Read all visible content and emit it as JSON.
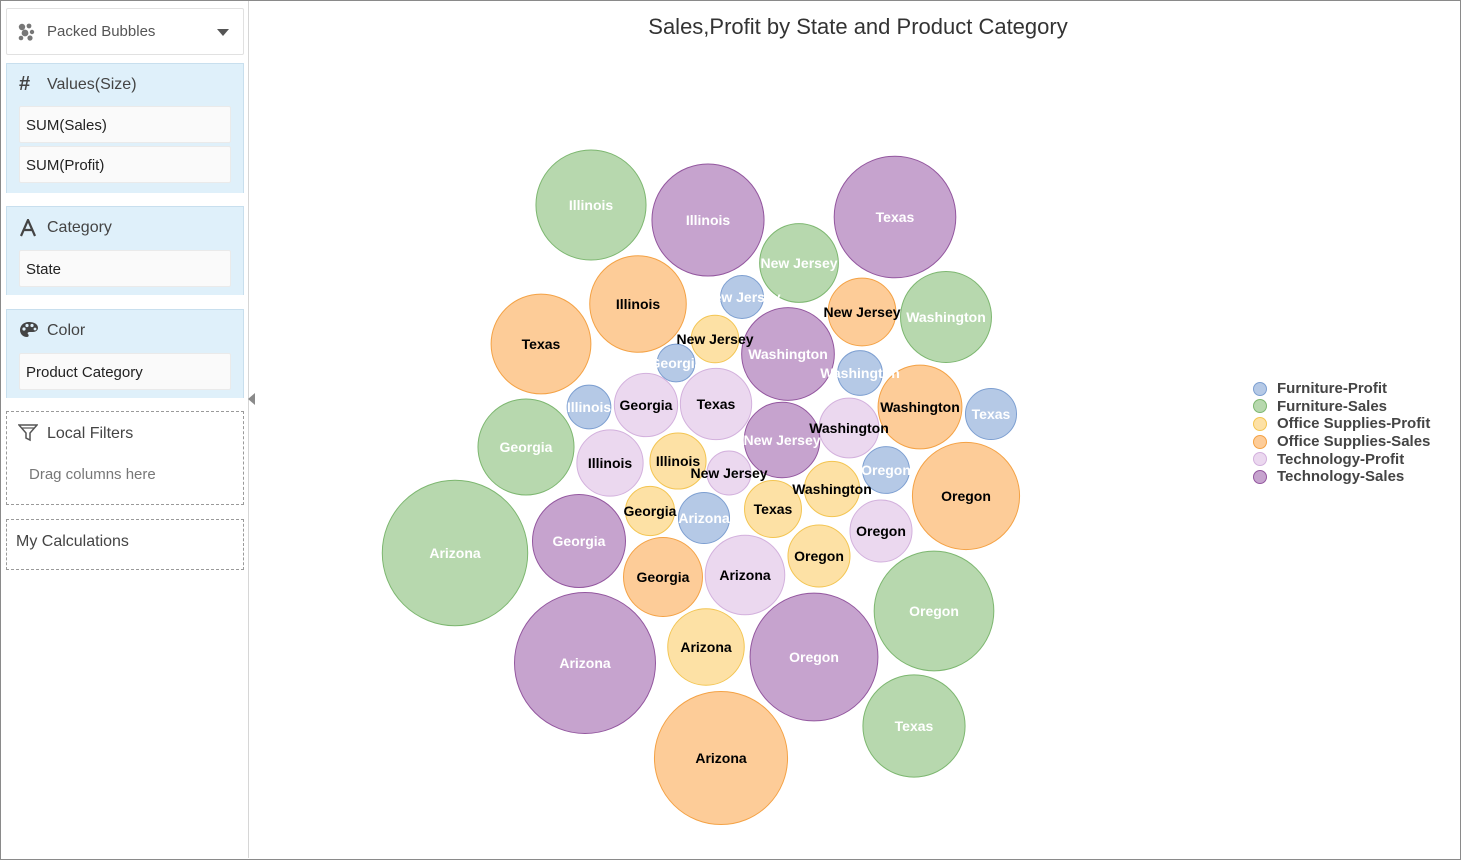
{
  "sidebar": {
    "chart_type": {
      "label": "Packed Bubbles",
      "icon": "packed-bubbles-icon"
    },
    "values": {
      "title": "Values(Size)",
      "icon": "hash-icon",
      "items": [
        "SUM(Sales)",
        "SUM(Profit)"
      ]
    },
    "category": {
      "title": "Category",
      "icon": "text-a-icon",
      "items": [
        "State"
      ]
    },
    "color": {
      "title": "Color",
      "icon": "palette-icon",
      "items": [
        "Product Category"
      ]
    },
    "local_filters": {
      "title": "Local Filters",
      "icon": "filter-icon",
      "placeholder": "Drag columns here"
    },
    "calculations": {
      "title": "My Calculations"
    }
  },
  "chart_data": {
    "type": "bubble",
    "title": "Sales,Profit by State and Product Category",
    "size_measures": [
      "SUM(Sales)",
      "SUM(Profit)"
    ],
    "legend_position": "right",
    "series": [
      {
        "name": "Furniture-Profit",
        "color": "#b5c9e6",
        "stroke": "#7d9fd1",
        "label_color": "#ffffff",
        "points": [
          {
            "label": "Illinois",
            "size": 0.6
          },
          {
            "label": "New Jersey",
            "size": 0.58
          },
          {
            "label": "Georgia",
            "size": 0.45
          },
          {
            "label": "Washington",
            "size": 0.63
          },
          {
            "label": "Texas",
            "size": 0.82
          },
          {
            "label": "Oregon",
            "size": 0.69
          },
          {
            "label": "Arizona",
            "size": 0.82
          }
        ]
      },
      {
        "name": "Furniture-Sales",
        "color": "#b7d8ae",
        "stroke": "#7db770",
        "label_color": "#ffffff",
        "points": [
          {
            "label": "Illinois",
            "size": 3.81
          },
          {
            "label": "New Jersey",
            "size": 1.95
          },
          {
            "label": "Washington",
            "size": 2.6
          },
          {
            "label": "Texas",
            "size": 3.28
          },
          {
            "label": "Georgia",
            "size": 2.9
          },
          {
            "label": "Arizona",
            "size": 6.65
          },
          {
            "label": "Oregon",
            "size": 4.5
          }
        ]
      },
      {
        "name": "Office Supplies-Profit",
        "color": "#fde1a5",
        "stroke": "#f3c552",
        "label_color": "#000000",
        "points": [
          {
            "label": "New Jersey",
            "size": 0.71
          },
          {
            "label": "Illinois",
            "size": 0.99
          },
          {
            "label": "Georgia",
            "size": 0.76
          },
          {
            "label": "Texas",
            "size": 1.02
          },
          {
            "label": "Washington",
            "size": 0.96
          },
          {
            "label": "Oregon",
            "size": 1.21
          },
          {
            "label": "Arizona",
            "size": 1.84
          }
        ]
      },
      {
        "name": "Office Supplies-Sales",
        "color": "#fdcc98",
        "stroke": "#f4a245",
        "label_color": "#000000",
        "points": [
          {
            "label": "Illinois",
            "size": 2.93
          },
          {
            "label": "Texas",
            "size": 3.13
          },
          {
            "label": "New Jersey",
            "size": 1.44
          },
          {
            "label": "Washington",
            "size": 2.21
          },
          {
            "label": "Oregon",
            "size": 3.61
          },
          {
            "label": "Georgia",
            "size": 1.96
          },
          {
            "label": "Arizona",
            "size": 5.57
          }
        ]
      },
      {
        "name": "Technology-Profit",
        "color": "#ebd8ef",
        "stroke": "#d3b1dd",
        "label_color": "#000000",
        "points": [
          {
            "label": "Georgia",
            "size": 1.26
          },
          {
            "label": "Texas",
            "size": 1.6
          },
          {
            "label": "Illinois",
            "size": 1.38
          },
          {
            "label": "New Jersey",
            "size": 0.61
          },
          {
            "label": "Washington",
            "size": 1.12
          },
          {
            "label": "Oregon",
            "size": 1.21
          },
          {
            "label": "Arizona",
            "size": 1.99
          }
        ]
      },
      {
        "name": "Technology-Sales",
        "color": "#c6a3ce",
        "stroke": "#93579f",
        "label_color": "#ffffff",
        "points": [
          {
            "label": "Illinois",
            "size": 3.95
          },
          {
            "label": "Texas",
            "size": 4.65
          },
          {
            "label": "Washington",
            "size": 2.7
          },
          {
            "label": "New Jersey",
            "size": 1.79
          },
          {
            "label": "Georgia",
            "size": 2.72
          },
          {
            "label": "Arizona",
            "size": 6.25
          },
          {
            "label": "Oregon",
            "size": 5.14
          }
        ]
      }
    ]
  }
}
